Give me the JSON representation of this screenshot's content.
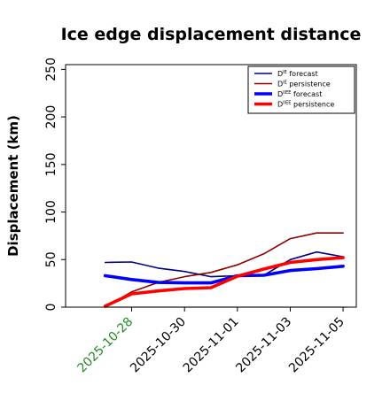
{
  "chart_data": {
    "type": "line",
    "title": "Ice edge displacement distance",
    "ylabel": "Displacement (km)",
    "xlabel": "",
    "ylim": [
      0,
      255
    ],
    "y_ticks": [
      0,
      50,
      100,
      150,
      200,
      250
    ],
    "x_ticks": [
      {
        "date": "2025-10-28",
        "label": "2025-10-28",
        "color": "#228b22"
      },
      {
        "date": "2025-10-30",
        "label": "2025-10-30",
        "color": "#000000"
      },
      {
        "date": "2025-11-01",
        "label": "2025-11-01",
        "color": "#000000"
      },
      {
        "date": "2025-11-03",
        "label": "2025-11-03",
        "color": "#000000"
      },
      {
        "date": "2025-11-05",
        "label": "2025-11-05",
        "color": "#000000"
      }
    ],
    "x_range": [
      "2025-10-25T12:00",
      "2025-11-05T12:00"
    ],
    "grid": false,
    "legend_position": "top-right",
    "zero_line": {
      "color": "#808080",
      "x_start": "2025-10-27"
    },
    "x": [
      "2025-10-27",
      "2025-10-28",
      "2025-10-29",
      "2025-10-30",
      "2025-10-31",
      "2025-11-01",
      "2025-11-02",
      "2025-11-03",
      "2025-11-04",
      "2025-11-05"
    ],
    "series": [
      {
        "name": "D^IE forecast",
        "legend_main": "D",
        "legend_sup": "IE",
        "legend_rest": " forecast",
        "color": "#000080",
        "width": 1.6,
        "values": [
          47,
          47.5,
          41,
          37.5,
          32,
          33,
          33.5,
          50,
          58,
          53
        ]
      },
      {
        "name": "D^IE persistence",
        "legend_main": "D",
        "legend_sup": "IE",
        "legend_rest": " persistence",
        "color": "#8b0000",
        "width": 1.6,
        "values": [
          0,
          16,
          26,
          32,
          36.5,
          44.5,
          56,
          72,
          78,
          78
        ]
      },
      {
        "name": "D^IIEE forecast",
        "legend_main": "D",
        "legend_sup": "IIEE",
        "legend_rest": " forecast",
        "color": "#0000ff",
        "width": 3.6,
        "values": [
          33,
          29,
          26,
          25.5,
          25.5,
          33,
          33.5,
          38.5,
          40.5,
          43
        ]
      },
      {
        "name": "D^IIEE persistence",
        "legend_main": "D",
        "legend_sup": "IIEE",
        "legend_rest": " persistence",
        "color": "#ff0000",
        "width": 3.6,
        "values": [
          1,
          14,
          17,
          19.5,
          20.5,
          32.5,
          40,
          47,
          50,
          52
        ]
      }
    ]
  }
}
